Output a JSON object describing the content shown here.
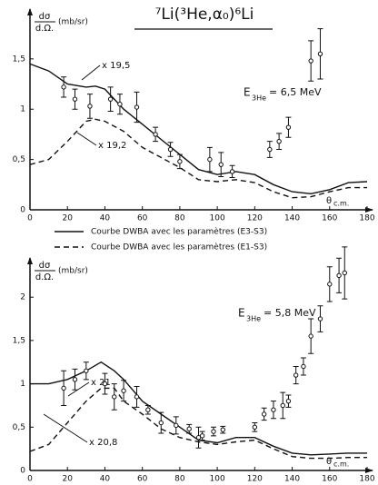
{
  "chart_data": [
    {
      "type": "line",
      "title": "⁷Li(³He,α₀)⁶Li",
      "ylabel": {
        "numerator": "dσ",
        "denominator": "d.Ω.",
        "unit": "(mb/sr)"
      },
      "xlabel": {
        "symbol": "θ",
        "subscript": "c.m."
      },
      "energy": {
        "symbol": "E",
        "subscript": "3He",
        "text": "= 6,5 MeV"
      },
      "annotations": [
        "x 19,5",
        "x 19,2"
      ],
      "xlim": [
        0,
        180
      ],
      "xticks": [
        0,
        20,
        40,
        60,
        80,
        100,
        120,
        140,
        160,
        180
      ],
      "ylim": [
        0,
        1.95
      ],
      "yticks": [
        0,
        {
          "value": 0.5,
          "label": "0,5"
        },
        1,
        {
          "value": 1.5,
          "label": "1,5"
        }
      ],
      "x": [
        0,
        10,
        20,
        30,
        35,
        40,
        50,
        60,
        70,
        80,
        90,
        100,
        110,
        120,
        130,
        140,
        150,
        160,
        170,
        180
      ],
      "series": [
        {
          "name": "Courbe DWBA avec les paramètres (E3-S3)",
          "color": "#111",
          "style": "solid",
          "values": [
            1.45,
            1.38,
            1.25,
            1.22,
            1.23,
            1.2,
            1.0,
            0.85,
            0.7,
            0.55,
            0.4,
            0.35,
            0.38,
            0.35,
            0.25,
            0.18,
            0.16,
            0.2,
            0.27,
            0.28
          ]
        },
        {
          "name": "Courbe DWBA avec les paramètres (E1-S3)",
          "color": "#111",
          "style": "dashed",
          "values": [
            0.45,
            0.5,
            0.68,
            0.88,
            0.9,
            0.88,
            0.78,
            0.62,
            0.52,
            0.42,
            0.3,
            0.28,
            0.3,
            0.27,
            0.18,
            0.12,
            0.13,
            0.18,
            0.22,
            0.22
          ]
        }
      ],
      "points": {
        "x": [
          18,
          24,
          32,
          43,
          48,
          57,
          67,
          75,
          80,
          96,
          102,
          108,
          128,
          133,
          138,
          150,
          155
        ],
        "values": [
          1.22,
          1.1,
          1.03,
          1.1,
          1.05,
          1.02,
          0.75,
          0.6,
          0.48,
          0.5,
          0.45,
          0.38,
          0.6,
          0.68,
          0.82,
          1.48,
          1.55
        ],
        "errors": [
          0.1,
          0.1,
          0.12,
          0.12,
          0.1,
          0.15,
          0.07,
          0.07,
          0.07,
          0.12,
          0.12,
          0.06,
          0.08,
          0.08,
          0.1,
          0.2,
          0.25
        ]
      }
    },
    {
      "type": "line",
      "ylabel": {
        "numerator": "dσ",
        "denominator": "d.Ω.",
        "unit": "(mb/sr)"
      },
      "xlabel": {
        "symbol": "θ",
        "subscript": "c.m."
      },
      "energy": {
        "symbol": "E",
        "subscript": "3He",
        "text": "= 5,8 MeV"
      },
      "annotations": [
        "x 21",
        "x 20,8"
      ],
      "xlim": [
        0,
        180
      ],
      "xticks": [
        0,
        20,
        40,
        60,
        80,
        100,
        120,
        140,
        160,
        180
      ],
      "ylim": [
        0,
        2.4
      ],
      "yticks": [
        0,
        {
          "value": 0.5,
          "label": "0,5"
        },
        1,
        {
          "value": 1.5,
          "label": "1,5"
        },
        2
      ],
      "x": [
        0,
        10,
        20,
        30,
        38,
        45,
        50,
        60,
        70,
        80,
        90,
        100,
        110,
        120,
        130,
        140,
        150,
        160,
        170,
        180
      ],
      "series": [
        {
          "color": "#111",
          "style": "solid",
          "values": [
            1.0,
            1.0,
            1.05,
            1.15,
            1.25,
            1.15,
            1.05,
            0.8,
            0.65,
            0.5,
            0.35,
            0.32,
            0.38,
            0.38,
            0.28,
            0.2,
            0.18,
            0.19,
            0.2,
            0.2
          ]
        },
        {
          "color": "#111",
          "style": "dashed",
          "values": [
            0.22,
            0.3,
            0.55,
            0.8,
            0.95,
            0.95,
            0.8,
            0.65,
            0.48,
            0.38,
            0.33,
            0.3,
            0.33,
            0.35,
            0.25,
            0.16,
            0.14,
            0.14,
            0.15,
            0.15
          ]
        }
      ],
      "points": {
        "x": [
          18,
          24,
          30,
          40,
          45,
          50,
          57,
          63,
          70,
          78,
          85,
          90,
          92,
          98,
          103,
          120,
          125,
          130,
          135,
          138,
          142,
          146,
          150,
          155,
          160,
          165,
          168
        ],
        "values": [
          0.95,
          1.05,
          1.15,
          1.0,
          0.85,
          0.92,
          0.85,
          0.7,
          0.55,
          0.52,
          0.48,
          0.38,
          0.4,
          0.45,
          0.47,
          0.5,
          0.65,
          0.7,
          0.75,
          0.8,
          1.1,
          1.2,
          1.55,
          1.75,
          2.15,
          2.25,
          2.28
        ],
        "errors": [
          0.2,
          0.12,
          0.1,
          0.12,
          0.15,
          0.12,
          0.12,
          0.05,
          0.12,
          0.1,
          0.05,
          0.12,
          0.05,
          0.05,
          0.04,
          0.05,
          0.07,
          0.1,
          0.15,
          0.07,
          0.1,
          0.1,
          0.2,
          0.15,
          0.2,
          0.2,
          0.3
        ]
      }
    }
  ]
}
